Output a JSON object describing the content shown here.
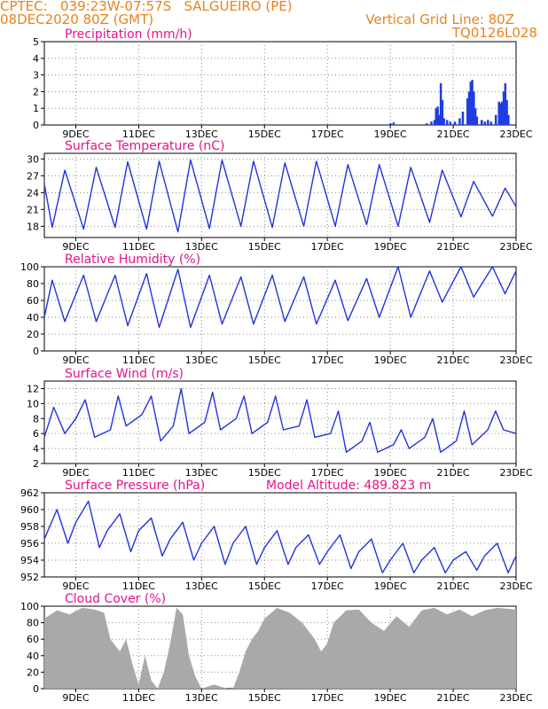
{
  "header": {
    "line1_left": "CPTEC:   039:23W-07:57S   SALGUEIRO (PE)",
    "line2_left": "08DEC2020 80Z (GMT)",
    "line1_right": "Vertical Grid Line: 80Z",
    "line2_right": "TQ0126L028"
  },
  "colors": {
    "line": "#2233dd",
    "bar": "#1f3de0",
    "cloud": "#a9a9a9",
    "title": "#e6138c",
    "header": "#e8821c"
  },
  "x_tick_labels": [
    "9DEC",
    "11DEC",
    "13DEC",
    "15DEC",
    "17DEC",
    "19DEC",
    "21DEC",
    "23DEC"
  ],
  "chart_data": [
    {
      "type": "bar",
      "title": "Precipitation (mm/h)",
      "ylim": [
        0,
        5
      ],
      "yticks": [
        0,
        1,
        2,
        3,
        4,
        5
      ],
      "x_range_days": [
        8.0,
        23.0
      ],
      "points": [
        [
          19.0,
          0.1
        ],
        [
          19.1,
          0.15
        ],
        [
          20.15,
          0.1
        ],
        [
          20.3,
          0.2
        ],
        [
          20.4,
          0.3
        ],
        [
          20.45,
          1.0
        ],
        [
          20.5,
          1.1
        ],
        [
          20.55,
          0.6
        ],
        [
          20.6,
          2.5
        ],
        [
          20.65,
          1.5
        ],
        [
          20.7,
          0.4
        ],
        [
          20.8,
          0.3
        ],
        [
          20.9,
          0.2
        ],
        [
          21.05,
          0.2
        ],
        [
          21.2,
          0.4
        ],
        [
          21.3,
          0.8
        ],
        [
          21.45,
          1.6
        ],
        [
          21.5,
          2.0
        ],
        [
          21.55,
          2.6
        ],
        [
          21.6,
          2.7
        ],
        [
          21.65,
          2.0
        ],
        [
          21.7,
          1.0
        ],
        [
          21.75,
          0.5
        ],
        [
          21.9,
          0.3
        ],
        [
          22.0,
          0.2
        ],
        [
          22.1,
          0.3
        ],
        [
          22.2,
          0.2
        ],
        [
          22.35,
          0.6
        ],
        [
          22.45,
          1.4
        ],
        [
          22.5,
          1.3
        ],
        [
          22.55,
          1.4
        ],
        [
          22.6,
          2.0
        ],
        [
          22.65,
          2.5
        ],
        [
          22.7,
          1.5
        ],
        [
          22.75,
          0.6
        ]
      ]
    },
    {
      "type": "line",
      "title": "Surface Temperature (nC)",
      "ylim": [
        16,
        31
      ],
      "yticks": [
        18,
        21,
        24,
        27,
        30
      ],
      "x_range_days": [
        8.0,
        23.0
      ],
      "points": [
        [
          8.0,
          25.5
        ],
        [
          8.25,
          17.8
        ],
        [
          8.65,
          28.0
        ],
        [
          9.25,
          17.5
        ],
        [
          9.65,
          28.5
        ],
        [
          10.25,
          17.8
        ],
        [
          10.65,
          29.5
        ],
        [
          11.25,
          17.5
        ],
        [
          11.65,
          29.6
        ],
        [
          12.25,
          17.0
        ],
        [
          12.65,
          29.8
        ],
        [
          13.25,
          17.6
        ],
        [
          13.65,
          29.8
        ],
        [
          14.25,
          18.0
        ],
        [
          14.65,
          29.6
        ],
        [
          15.25,
          17.8
        ],
        [
          15.65,
          29.3
        ],
        [
          16.25,
          18.0
        ],
        [
          16.65,
          29.6
        ],
        [
          17.25,
          18.0
        ],
        [
          17.65,
          29.0
        ],
        [
          18.25,
          18.3
        ],
        [
          18.65,
          29.0
        ],
        [
          19.25,
          18.0
        ],
        [
          19.65,
          28.5
        ],
        [
          20.25,
          18.7
        ],
        [
          20.65,
          28.0
        ],
        [
          21.25,
          19.7
        ],
        [
          21.65,
          26.0
        ],
        [
          22.25,
          19.8
        ],
        [
          22.65,
          24.8
        ],
        [
          23.0,
          21.5
        ]
      ]
    },
    {
      "type": "line",
      "title": "Relative Humidity (%)",
      "ylim": [
        0,
        100
      ],
      "yticks": [
        0,
        20,
        40,
        60,
        80,
        100
      ],
      "x_range_days": [
        8.0,
        23.0
      ],
      "points": [
        [
          8.0,
          40
        ],
        [
          8.25,
          84
        ],
        [
          8.65,
          35
        ],
        [
          9.25,
          90
        ],
        [
          9.65,
          35
        ],
        [
          10.25,
          90
        ],
        [
          10.65,
          30
        ],
        [
          11.25,
          92
        ],
        [
          11.65,
          28
        ],
        [
          12.25,
          97
        ],
        [
          12.65,
          28
        ],
        [
          13.25,
          90
        ],
        [
          13.65,
          32
        ],
        [
          14.25,
          88
        ],
        [
          14.65,
          32
        ],
        [
          15.25,
          90
        ],
        [
          15.65,
          35
        ],
        [
          16.25,
          88
        ],
        [
          16.65,
          32
        ],
        [
          17.25,
          84
        ],
        [
          17.65,
          36
        ],
        [
          18.25,
          86
        ],
        [
          18.65,
          40
        ],
        [
          19.25,
          100
        ],
        [
          19.65,
          40
        ],
        [
          20.25,
          95
        ],
        [
          20.65,
          58
        ],
        [
          21.25,
          100
        ],
        [
          21.65,
          64
        ],
        [
          22.25,
          100
        ],
        [
          22.65,
          68
        ],
        [
          23.0,
          95
        ]
      ]
    },
    {
      "type": "line",
      "title": "Surface Wind (m/s)",
      "ylim": [
        2,
        13
      ],
      "yticks": [
        2,
        4,
        6,
        8,
        10,
        12
      ],
      "x_range_days": [
        8.0,
        23.0
      ],
      "points": [
        [
          8.0,
          5.5
        ],
        [
          8.3,
          9.5
        ],
        [
          8.65,
          6.0
        ],
        [
          9.0,
          8.0
        ],
        [
          9.3,
          10.5
        ],
        [
          9.6,
          5.5
        ],
        [
          10.1,
          6.5
        ],
        [
          10.35,
          11.0
        ],
        [
          10.6,
          7.0
        ],
        [
          11.1,
          8.5
        ],
        [
          11.4,
          11.0
        ],
        [
          11.7,
          5.0
        ],
        [
          12.1,
          7.0
        ],
        [
          12.35,
          12.0
        ],
        [
          12.6,
          6.0
        ],
        [
          13.1,
          7.5
        ],
        [
          13.35,
          11.5
        ],
        [
          13.6,
          6.5
        ],
        [
          14.1,
          8.0
        ],
        [
          14.35,
          11.0
        ],
        [
          14.6,
          6.0
        ],
        [
          15.1,
          7.5
        ],
        [
          15.35,
          11.0
        ],
        [
          15.6,
          6.5
        ],
        [
          16.1,
          7.0
        ],
        [
          16.35,
          10.5
        ],
        [
          16.6,
          5.5
        ],
        [
          17.1,
          6.0
        ],
        [
          17.35,
          9.0
        ],
        [
          17.6,
          3.5
        ],
        [
          18.1,
          5.0
        ],
        [
          18.35,
          7.5
        ],
        [
          18.6,
          3.5
        ],
        [
          19.1,
          4.5
        ],
        [
          19.35,
          6.5
        ],
        [
          19.6,
          4.0
        ],
        [
          20.1,
          5.5
        ],
        [
          20.35,
          8.0
        ],
        [
          20.6,
          3.5
        ],
        [
          21.1,
          5.0
        ],
        [
          21.35,
          9.0
        ],
        [
          21.6,
          4.5
        ],
        [
          22.1,
          6.5
        ],
        [
          22.35,
          9.0
        ],
        [
          22.6,
          6.5
        ],
        [
          23.0,
          6.0
        ]
      ]
    },
    {
      "type": "line",
      "title": "Surface Pressure (hPa)",
      "annotation": "Model Altitude: 489.823 m",
      "ylim": [
        952,
        962
      ],
      "yticks": [
        952,
        954,
        956,
        958,
        960,
        962
      ],
      "x_range_days": [
        8.0,
        23.0
      ],
      "points": [
        [
          8.0,
          956.5
        ],
        [
          8.4,
          960.0
        ],
        [
          8.75,
          956.0
        ],
        [
          9.0,
          958.5
        ],
        [
          9.4,
          961.0
        ],
        [
          9.75,
          955.5
        ],
        [
          10.0,
          957.5
        ],
        [
          10.4,
          959.5
        ],
        [
          10.75,
          955.0
        ],
        [
          11.0,
          957.5
        ],
        [
          11.4,
          959.0
        ],
        [
          11.75,
          954.5
        ],
        [
          12.0,
          956.5
        ],
        [
          12.4,
          958.5
        ],
        [
          12.75,
          954.0
        ],
        [
          13.0,
          956.0
        ],
        [
          13.4,
          958.0
        ],
        [
          13.75,
          953.5
        ],
        [
          14.0,
          956.0
        ],
        [
          14.4,
          958.0
        ],
        [
          14.75,
          953.5
        ],
        [
          15.0,
          955.5
        ],
        [
          15.4,
          957.5
        ],
        [
          15.75,
          953.5
        ],
        [
          16.0,
          955.5
        ],
        [
          16.4,
          957.0
        ],
        [
          16.75,
          953.5
        ],
        [
          17.0,
          955.0
        ],
        [
          17.4,
          957.0
        ],
        [
          17.75,
          953.0
        ],
        [
          18.0,
          955.0
        ],
        [
          18.4,
          956.5
        ],
        [
          18.75,
          952.5
        ],
        [
          19.0,
          954.0
        ],
        [
          19.4,
          956.0
        ],
        [
          19.75,
          952.5
        ],
        [
          20.0,
          954.0
        ],
        [
          20.4,
          955.5
        ],
        [
          20.75,
          952.5
        ],
        [
          21.0,
          954.0
        ],
        [
          21.4,
          955.0
        ],
        [
          21.75,
          952.8
        ],
        [
          22.0,
          954.5
        ],
        [
          22.4,
          956.0
        ],
        [
          22.75,
          952.5
        ],
        [
          23.0,
          954.5
        ]
      ]
    },
    {
      "type": "area",
      "title": "Cloud Cover (%)",
      "ylim": [
        0,
        100
      ],
      "yticks": [
        0,
        20,
        40,
        60,
        80,
        100
      ],
      "x_range_days": [
        8.0,
        23.0
      ],
      "points": [
        [
          8.0,
          85
        ],
        [
          8.4,
          95
        ],
        [
          8.8,
          90
        ],
        [
          9.2,
          98
        ],
        [
          9.6,
          96
        ],
        [
          9.9,
          92
        ],
        [
          10.1,
          60
        ],
        [
          10.4,
          45
        ],
        [
          10.6,
          60
        ],
        [
          10.8,
          30
        ],
        [
          11.0,
          5
        ],
        [
          11.2,
          40
        ],
        [
          11.4,
          10
        ],
        [
          11.6,
          0
        ],
        [
          11.8,
          20
        ],
        [
          12.0,
          55
        ],
        [
          12.2,
          98
        ],
        [
          12.4,
          90
        ],
        [
          12.6,
          40
        ],
        [
          12.8,
          15
        ],
        [
          13.0,
          0
        ],
        [
          13.4,
          5
        ],
        [
          13.8,
          0
        ],
        [
          14.0,
          0
        ],
        [
          14.2,
          20
        ],
        [
          14.4,
          45
        ],
        [
          14.6,
          60
        ],
        [
          14.8,
          70
        ],
        [
          15.0,
          85
        ],
        [
          15.4,
          98
        ],
        [
          15.8,
          92
        ],
        [
          16.2,
          80
        ],
        [
          16.6,
          60
        ],
        [
          16.8,
          45
        ],
        [
          17.0,
          55
        ],
        [
          17.2,
          80
        ],
        [
          17.6,
          95
        ],
        [
          18.0,
          96
        ],
        [
          18.4,
          80
        ],
        [
          18.8,
          70
        ],
        [
          19.2,
          88
        ],
        [
          19.6,
          75
        ],
        [
          20.0,
          95
        ],
        [
          20.4,
          98
        ],
        [
          20.8,
          90
        ],
        [
          21.2,
          96
        ],
        [
          21.6,
          88
        ],
        [
          22.0,
          95
        ],
        [
          22.4,
          98
        ],
        [
          23.0,
          96
        ]
      ]
    }
  ]
}
